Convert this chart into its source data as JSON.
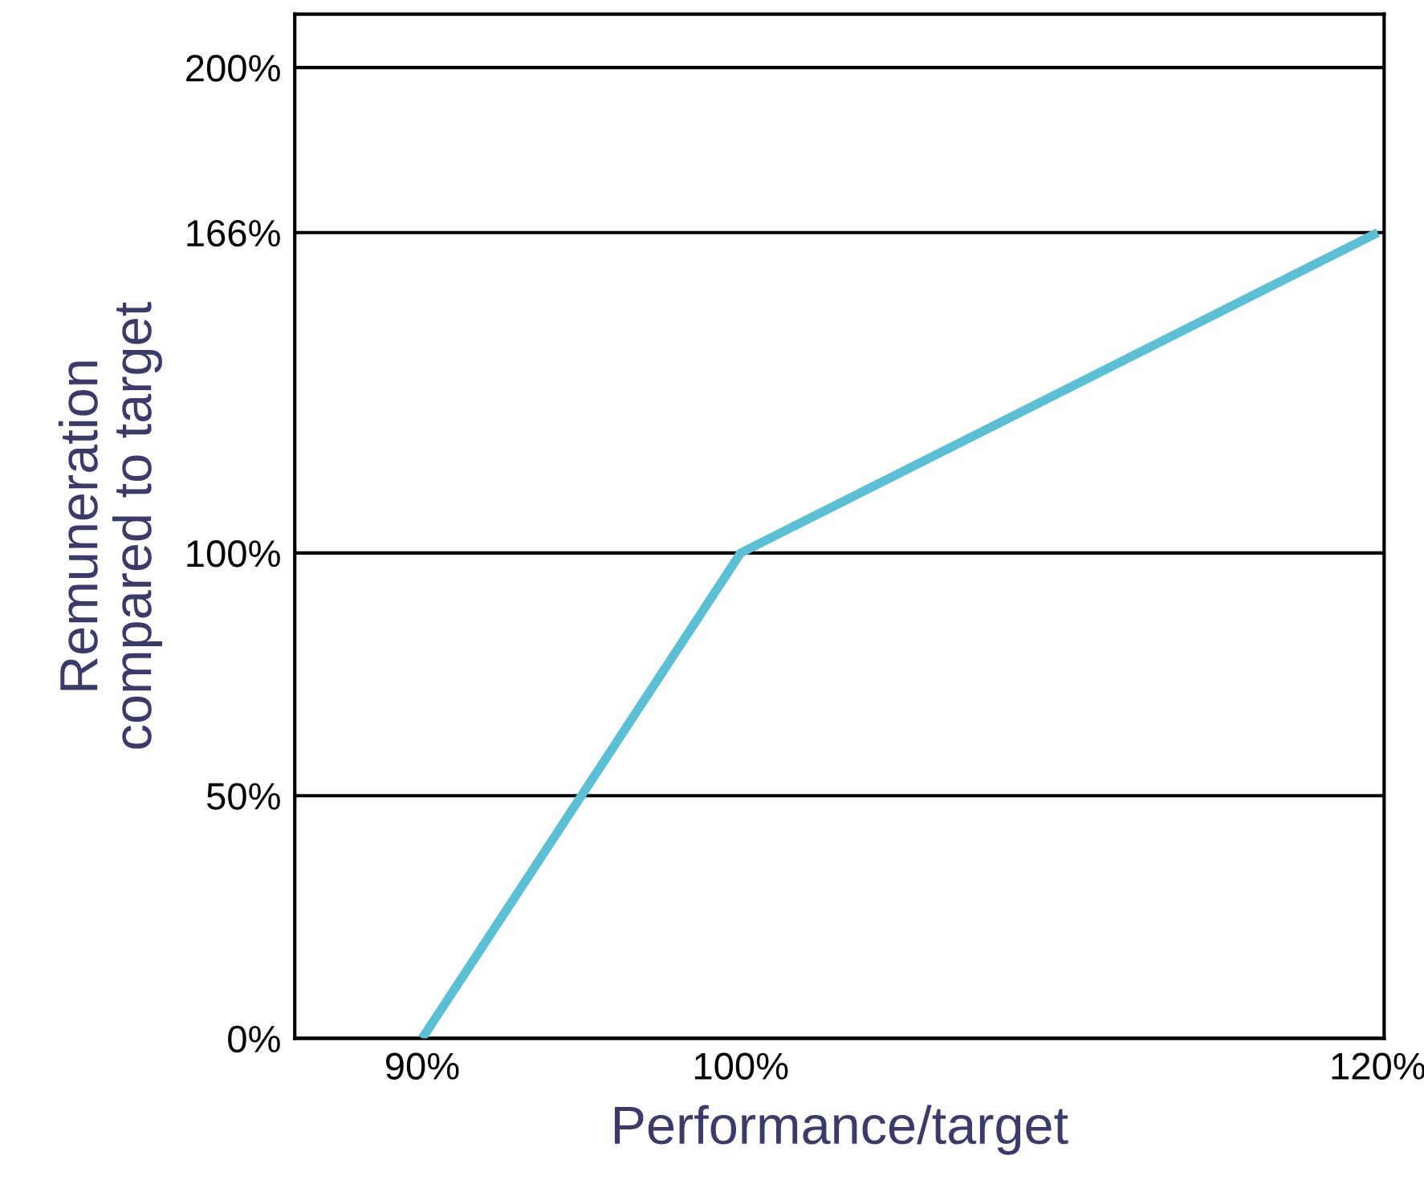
{
  "chart_data": {
    "type": "line",
    "xlabel": "Performance/target",
    "ylabel": "Remuneration\ncompared to target",
    "x": [
      90,
      100,
      120
    ],
    "series": [
      {
        "color": "#5bc0d5",
        "values": [
          0,
          100,
          166
        ]
      }
    ],
    "xlim": [
      86,
      120.2
    ],
    "xticks": [
      {
        "value": 90,
        "label": "90%"
      },
      {
        "value": 100,
        "label": "100%"
      },
      {
        "value": 120,
        "label": "120%"
      }
    ],
    "ylim": [
      0,
      211
    ],
    "yticks": [
      {
        "value": 0,
        "label": "0%"
      },
      {
        "value": 50,
        "label": "50%"
      },
      {
        "value": 100,
        "label": "100%"
      },
      {
        "value": 166,
        "label": "166%"
      },
      {
        "value": 200,
        "label": "200%"
      }
    ],
    "grid": "y",
    "line_style": "solid",
    "marker": "none"
  }
}
